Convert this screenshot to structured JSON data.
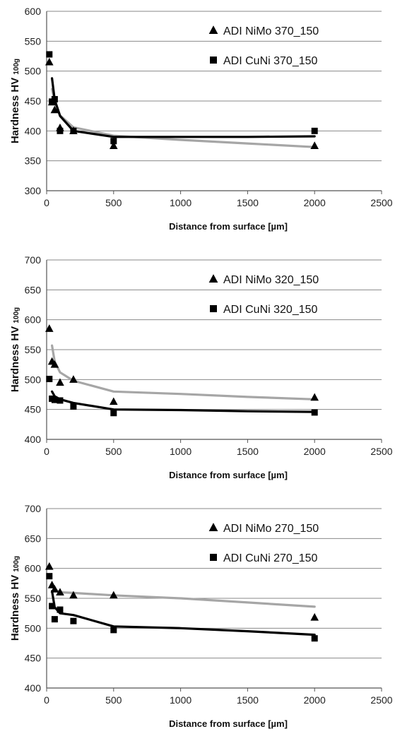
{
  "chart_data": [
    {
      "type": "scatter",
      "xlabel": "Distance from surface [µm]",
      "ylabel": "Hardness  HV",
      "ylabel_sub": "100g",
      "xlim": [
        0,
        2500
      ],
      "ylim": [
        300,
        600
      ],
      "xticks": [
        0,
        500,
        1000,
        1500,
        2000,
        2500
      ],
      "yticks": [
        300,
        350,
        400,
        450,
        500,
        550,
        600
      ],
      "grid": "horizontal",
      "legend": "top-right",
      "series": [
        {
          "name": "ADI NiMo 370_150",
          "marker": "triangle",
          "color": "#000000",
          "trend_color": "#a6a6a6",
          "points": [
            [
              20,
              515
            ],
            [
              40,
              448
            ],
            [
              60,
              435
            ],
            [
              100,
              405
            ],
            [
              200,
              400
            ],
            [
              500,
              375
            ],
            [
              2000,
              375
            ]
          ],
          "trend": [
            [
              40,
              470
            ],
            [
              60,
              450
            ],
            [
              100,
              426
            ],
            [
              200,
              406
            ],
            [
              500,
              392
            ],
            [
              1000,
              385
            ],
            [
              1500,
              379
            ],
            [
              2000,
              373
            ]
          ]
        },
        {
          "name": "ADI CuNi 370_150",
          "marker": "square",
          "color": "#000000",
          "trend_color": "#000000",
          "points": [
            [
              20,
              528
            ],
            [
              40,
              449
            ],
            [
              60,
              453
            ],
            [
              100,
              400
            ],
            [
              200,
              400
            ],
            [
              500,
              383
            ],
            [
              2000,
              400
            ]
          ],
          "trend": [
            [
              40,
              488
            ],
            [
              60,
              452
            ],
            [
              100,
              425
            ],
            [
              200,
              400
            ],
            [
              500,
              390
            ],
            [
              1000,
              390
            ],
            [
              1500,
              390
            ],
            [
              2000,
              391
            ]
          ]
        }
      ]
    },
    {
      "type": "scatter",
      "xlabel": "Distance from surface [µm]",
      "ylabel": "Hardness  HV",
      "ylabel_sub": "100g",
      "xlim": [
        0,
        2500
      ],
      "ylim": [
        400,
        700
      ],
      "xticks": [
        0,
        500,
        1000,
        1500,
        2000,
        2500
      ],
      "yticks": [
        400,
        450,
        500,
        550,
        600,
        650,
        700
      ],
      "grid": "horizontal",
      "legend": "top-right",
      "series": [
        {
          "name": "ADI NiMo 320_150",
          "marker": "triangle",
          "color": "#000000",
          "trend_color": "#a6a6a6",
          "points": [
            [
              20,
              585
            ],
            [
              40,
              530
            ],
            [
              60,
              525
            ],
            [
              100,
              495
            ],
            [
              200,
              500
            ],
            [
              500,
              463
            ],
            [
              2000,
              470
            ]
          ],
          "trend": [
            [
              40,
              557
            ],
            [
              60,
              530
            ],
            [
              100,
              512
            ],
            [
              200,
              498
            ],
            [
              500,
              480
            ],
            [
              1000,
              476
            ],
            [
              1500,
              471
            ],
            [
              2000,
              467
            ]
          ]
        },
        {
          "name": "ADI CuNi 320_150",
          "marker": "square",
          "color": "#000000",
          "trend_color": "#000000",
          "points": [
            [
              20,
              501
            ],
            [
              40,
              468
            ],
            [
              60,
              466
            ],
            [
              100,
              465
            ],
            [
              200,
              455
            ],
            [
              500,
              444
            ],
            [
              2000,
              445
            ]
          ],
          "trend": [
            [
              40,
              480
            ],
            [
              60,
              472
            ],
            [
              100,
              467
            ],
            [
              200,
              461
            ],
            [
              500,
              450
            ],
            [
              1000,
              449
            ],
            [
              1500,
              447
            ],
            [
              2000,
              446
            ]
          ]
        }
      ]
    },
    {
      "type": "scatter",
      "xlabel": "Distance from surface [µm]",
      "ylabel": "Hardness  HV",
      "ylabel_sub": "100g",
      "xlim": [
        0,
        2500
      ],
      "ylim": [
        400,
        700
      ],
      "xticks": [
        0,
        500,
        1000,
        1500,
        2000,
        2500
      ],
      "yticks": [
        400,
        450,
        500,
        550,
        600,
        650,
        700
      ],
      "grid": "horizontal",
      "legend": "top-right",
      "series": [
        {
          "name": "ADI NiMo 270_150",
          "marker": "triangle",
          "color": "#000000",
          "trend_color": "#a6a6a6",
          "points": [
            [
              20,
              603
            ],
            [
              40,
              572
            ],
            [
              60,
              565
            ],
            [
              100,
              560
            ],
            [
              200,
              555
            ],
            [
              500,
              555
            ],
            [
              2000,
              518
            ]
          ],
          "trend": [
            [
              40,
              575
            ],
            [
              60,
              565
            ],
            [
              100,
              560
            ],
            [
              200,
              559
            ],
            [
              500,
              555
            ],
            [
              1000,
              550
            ],
            [
              1500,
              543
            ],
            [
              2000,
              536
            ]
          ]
        },
        {
          "name": "ADI CuNi 270_150",
          "marker": "square",
          "color": "#000000",
          "trend_color": "#000000",
          "points": [
            [
              20,
              587
            ],
            [
              40,
              537
            ],
            [
              60,
              515
            ],
            [
              100,
              531
            ],
            [
              200,
              512
            ],
            [
              500,
              497
            ],
            [
              2000,
              483
            ]
          ],
          "trend": [
            [
              40,
              562
            ],
            [
              60,
              535
            ],
            [
              100,
              525
            ],
            [
              200,
              522
            ],
            [
              500,
              503
            ],
            [
              1000,
              500
            ],
            [
              1500,
              495
            ],
            [
              2000,
              489
            ]
          ]
        }
      ]
    }
  ]
}
